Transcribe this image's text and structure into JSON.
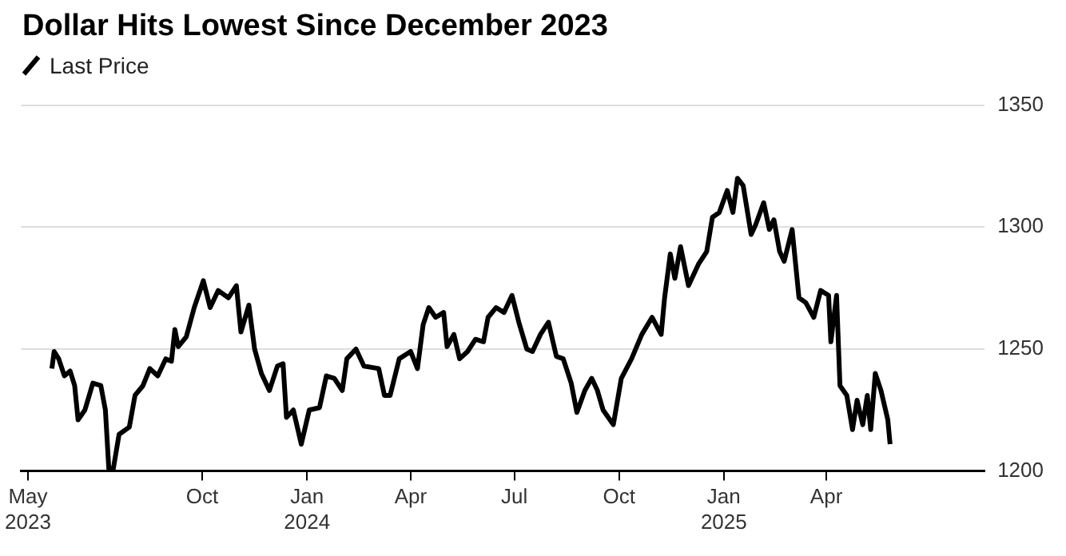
{
  "chart_data": {
    "type": "line",
    "title": "Dollar Hits Lowest Since December 2023",
    "x": [
      "2023-05-22",
      "2023-05-24",
      "2023-05-28",
      "2023-06-02",
      "2023-06-07",
      "2023-06-11",
      "2023-06-14",
      "2023-06-20",
      "2023-06-27",
      "2023-07-04",
      "2023-07-08",
      "2023-07-11",
      "2023-07-15",
      "2023-07-20",
      "2023-07-29",
      "2023-08-03",
      "2023-08-10",
      "2023-08-16",
      "2023-08-23",
      "2023-08-30",
      "2023-09-04",
      "2023-09-07",
      "2023-09-10",
      "2023-09-17",
      "2023-09-24",
      "2023-10-02",
      "2023-10-08",
      "2023-10-15",
      "2023-10-24",
      "2023-10-31",
      "2023-11-04",
      "2023-11-11",
      "2023-11-16",
      "2023-11-22",
      "2023-11-29",
      "2023-12-06",
      "2023-12-11",
      "2023-12-14",
      "2023-12-20",
      "2023-12-27",
      "2024-01-03",
      "2024-01-12",
      "2024-01-18",
      "2024-01-25",
      "2024-02-01",
      "2024-02-05",
      "2024-02-13",
      "2024-02-20",
      "2024-03-04",
      "2024-03-09",
      "2024-03-14",
      "2024-03-22",
      "2024-04-01",
      "2024-04-07",
      "2024-04-12",
      "2024-04-17",
      "2024-04-23",
      "2024-04-30",
      "2024-05-03",
      "2024-05-09",
      "2024-05-14",
      "2024-05-21",
      "2024-05-28",
      "2024-06-04",
      "2024-06-08",
      "2024-06-15",
      "2024-06-22",
      "2024-06-29",
      "2024-07-05",
      "2024-07-12",
      "2024-07-17",
      "2024-07-24",
      "2024-07-31",
      "2024-08-07",
      "2024-08-13",
      "2024-08-20",
      "2024-08-25",
      "2024-09-01",
      "2024-09-07",
      "2024-09-12",
      "2024-09-17",
      "2024-09-26",
      "2024-10-03",
      "2024-10-12",
      "2024-10-21",
      "2024-10-30",
      "2024-11-07",
      "2024-11-10",
      "2024-11-15",
      "2024-11-19",
      "2024-11-24",
      "2024-12-01",
      "2024-12-10",
      "2024-12-17",
      "2024-12-22",
      "2024-12-28",
      "2025-01-04",
      "2025-01-09",
      "2025-01-13",
      "2025-01-18",
      "2025-01-25",
      "2025-01-29",
      "2025-02-05",
      "2025-02-10",
      "2025-02-14",
      "2025-02-19",
      "2025-02-23",
      "2025-03-02",
      "2025-03-08",
      "2025-03-14",
      "2025-03-21",
      "2025-03-27",
      "2025-04-03",
      "2025-04-05",
      "2025-04-10",
      "2025-04-13",
      "2025-04-19",
      "2025-04-24",
      "2025-04-28",
      "2025-05-03",
      "2025-05-07",
      "2025-05-10",
      "2025-05-14",
      "2025-05-19",
      "2025-05-25",
      "2025-05-27"
    ],
    "series": [
      {
        "name": "Last Price",
        "color": "#000000",
        "values": [
          1242,
          1249,
          1246,
          1239,
          1241,
          1235,
          1221,
          1225,
          1236,
          1235,
          1225,
          1201,
          1201,
          1215,
          1218,
          1231,
          1235,
          1242,
          1239,
          1246,
          1245,
          1258,
          1251,
          1255,
          1267,
          1278,
          1267,
          1274,
          1271,
          1276,
          1257,
          1268,
          1250,
          1240,
          1233,
          1243,
          1244,
          1222,
          1225,
          1211,
          1225,
          1226,
          1239,
          1238,
          1233,
          1246,
          1250,
          1243,
          1242,
          1231,
          1231,
          1246,
          1249,
          1242,
          1260,
          1267,
          1263,
          1265,
          1251,
          1256,
          1246,
          1249,
          1254,
          1253,
          1263,
          1267,
          1265,
          1272,
          1261,
          1250,
          1249,
          1256,
          1261,
          1247,
          1246,
          1236,
          1224,
          1233,
          1238,
          1233,
          1225,
          1219,
          1238,
          1246,
          1256,
          1263,
          1256,
          1271,
          1289,
          1279,
          1292,
          1276,
          1285,
          1290,
          1304,
          1306,
          1315,
          1306,
          1320,
          1317,
          1297,
          1301,
          1310,
          1299,
          1303,
          1290,
          1286,
          1299,
          1271,
          1269,
          1263,
          1274,
          1272,
          1253,
          1272,
          1235,
          1231,
          1217,
          1229,
          1219,
          1231,
          1217,
          1240,
          1233,
          1221,
          1211
        ]
      }
    ],
    "xlim": [
      "2023-04-25",
      "2025-08-18"
    ],
    "xticks": [
      {
        "value": "2023-05-01",
        "label": "May\n2023"
      },
      {
        "value": "2023-10-01",
        "label": "Oct"
      },
      {
        "value": "2024-01-01",
        "label": "Jan\n2024"
      },
      {
        "value": "2024-04-01",
        "label": "Apr"
      },
      {
        "value": "2024-07-01",
        "label": "Jul"
      },
      {
        "value": "2024-10-01",
        "label": "Oct"
      },
      {
        "value": "2025-01-01",
        "label": "Jan\n2025"
      },
      {
        "value": "2025-04-01",
        "label": "Apr"
      }
    ],
    "ylim": [
      1200,
      1350
    ],
    "yticks": [
      1200,
      1250,
      1300,
      1350
    ],
    "grid": "y",
    "legend": "top left",
    "marker": "none",
    "line_style": "solid"
  }
}
